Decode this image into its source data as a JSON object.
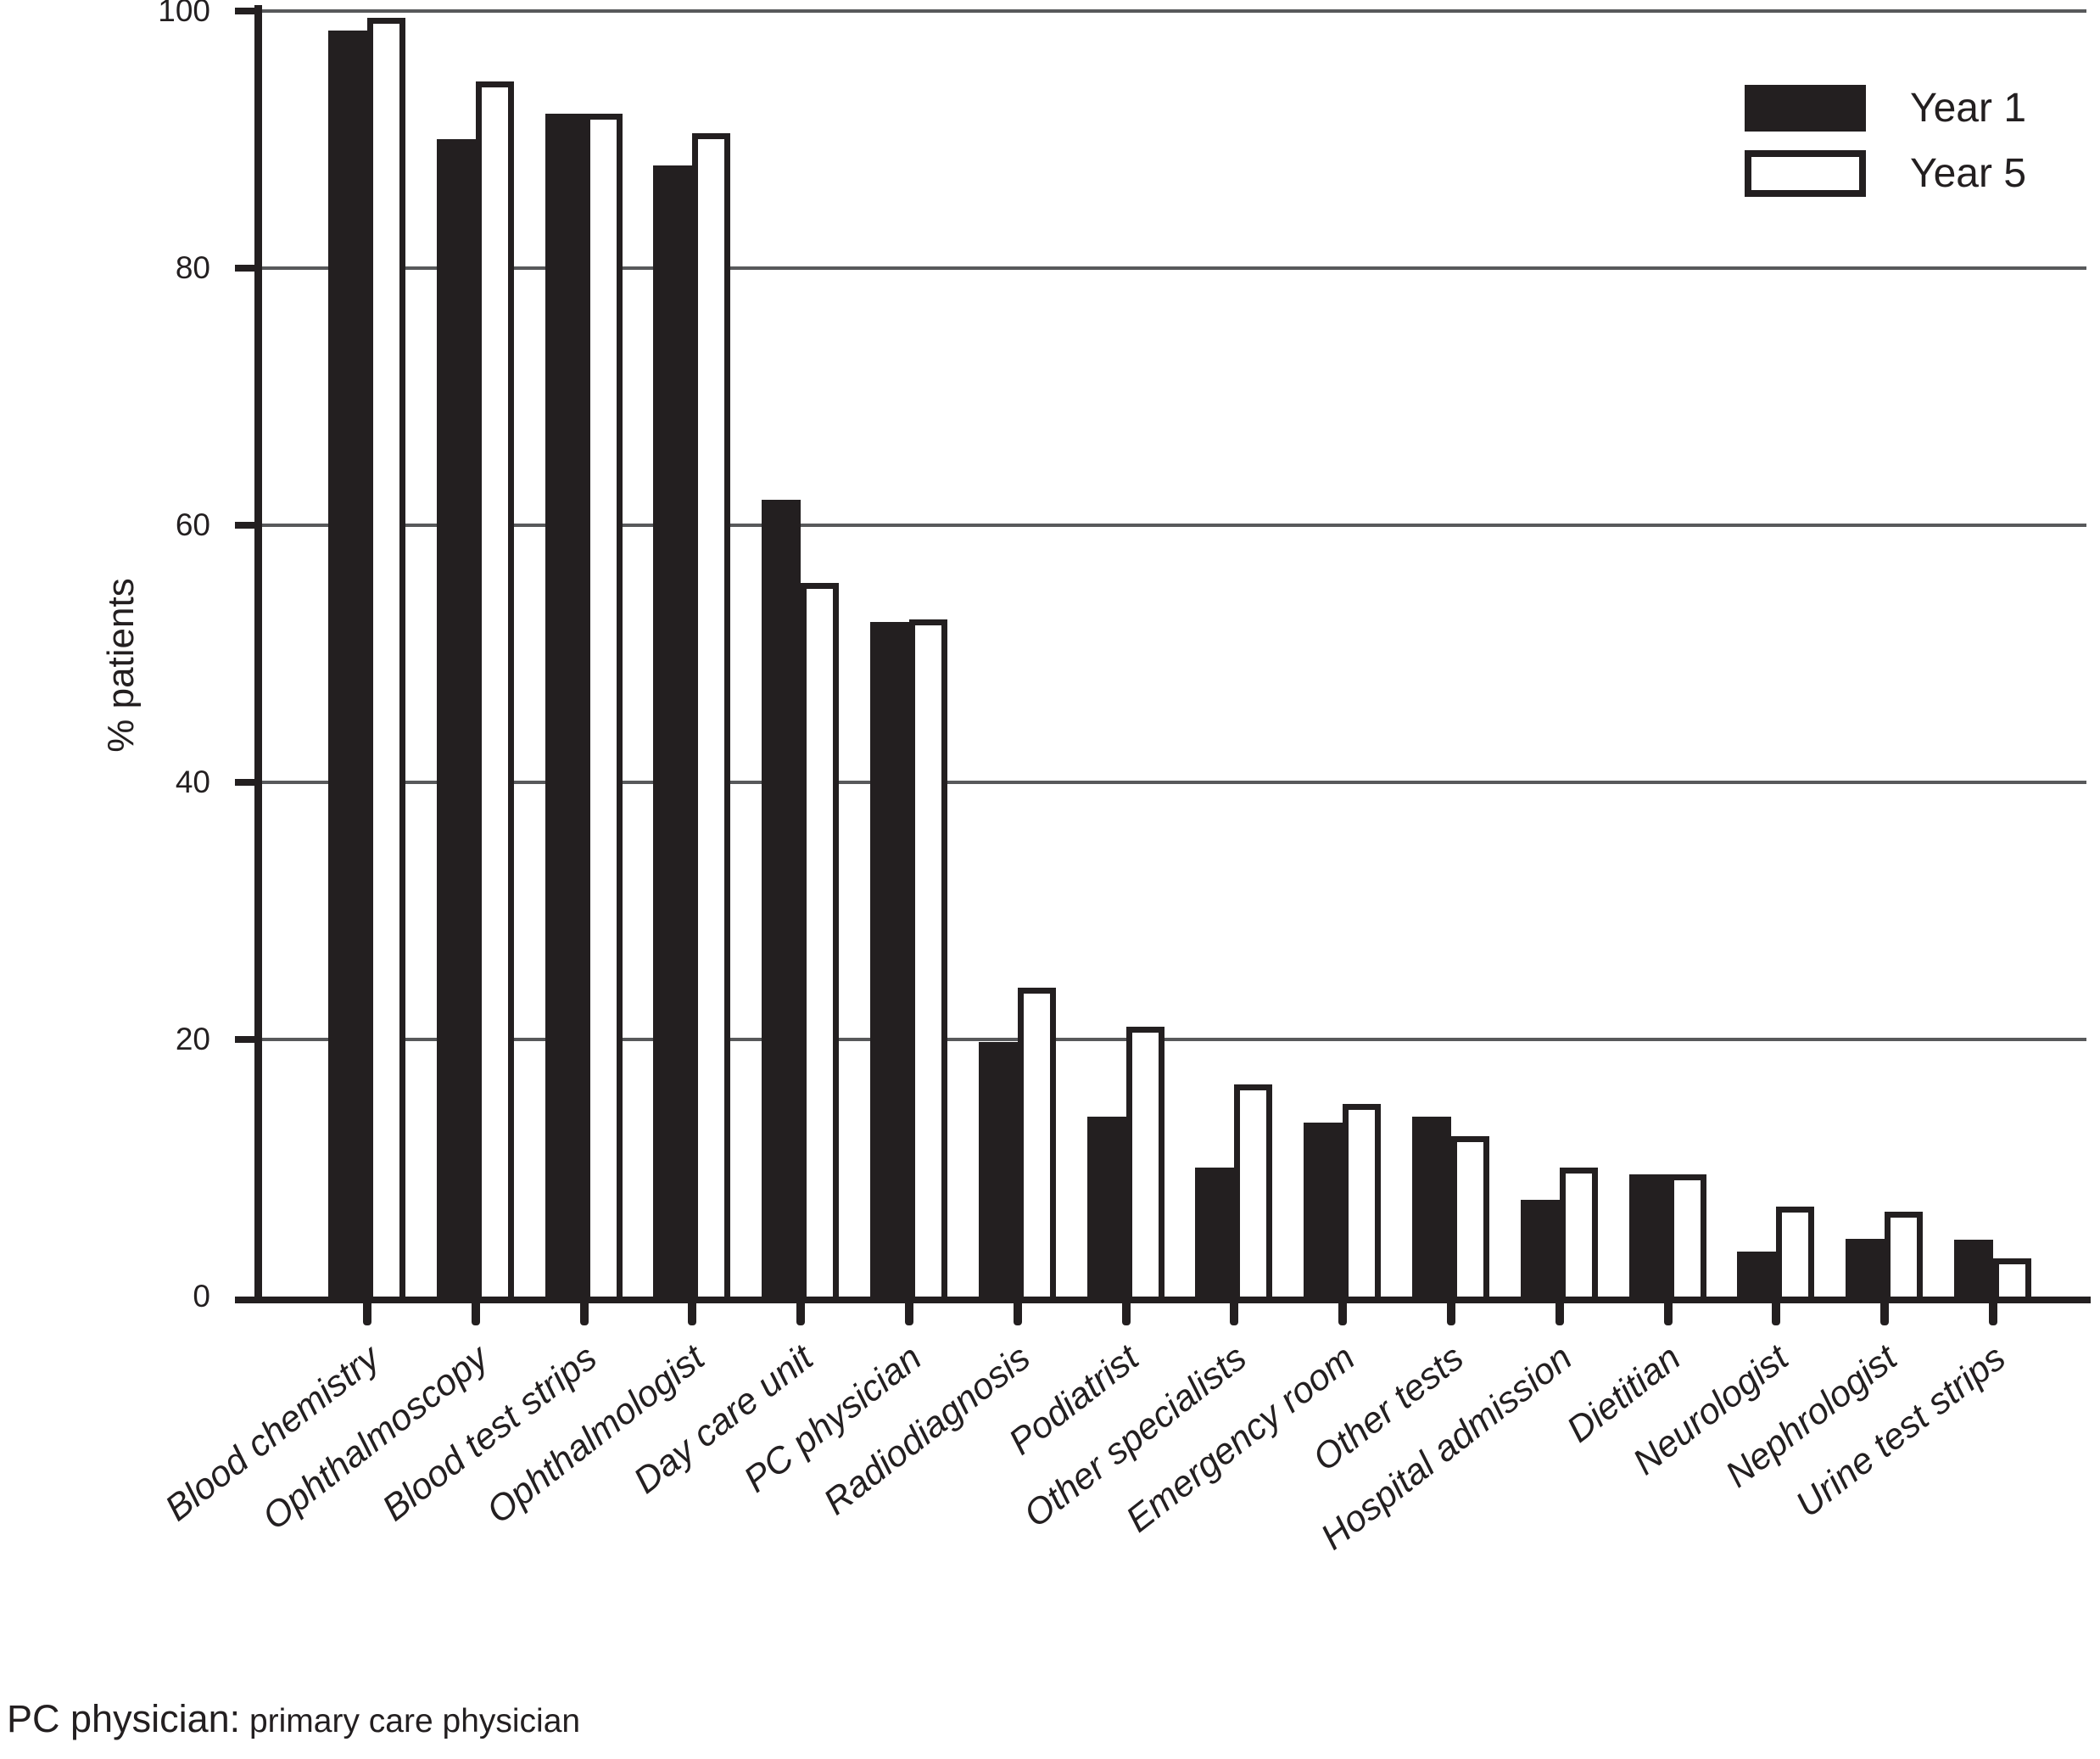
{
  "figure": {
    "ylabel": "% patients",
    "footnote_term": "PC physician:",
    "footnote_definition": " primary care physician"
  },
  "legend": [
    {
      "label": "Year 1",
      "fill": "#231f20"
    },
    {
      "label": "Year 5",
      "fill": "#ffffff"
    }
  ],
  "colors": {
    "ink": "#231f20",
    "grid": "#58595b",
    "background": "#ffffff"
  },
  "chart_data": {
    "type": "bar",
    "title": "",
    "ylabel": "% patients",
    "xlabel": "",
    "ylim": [
      0,
      100
    ],
    "yticks": [
      0,
      20,
      40,
      60,
      80,
      100
    ],
    "grid": true,
    "legend_position": "top-right",
    "categories": [
      "Blood chemistry",
      "Ophthalmoscopy",
      "Blood test strips",
      "Ophthalmologist",
      "Day care unit",
      "PC physician",
      "Radiodiagnosis",
      "Podiatrist",
      "Other specialists",
      "Emergency room",
      "Other tests",
      "Hospital admission",
      "Dietitian",
      "Neurologist",
      "Nephrologist",
      "Urine test strips"
    ],
    "series": [
      {
        "name": "Year 1",
        "style": "filled-black",
        "values": [
          98.5,
          90,
          92,
          88,
          62,
          52.5,
          19.8,
          14,
          10,
          13.5,
          14,
          7.5,
          9.5,
          3.5,
          4.5,
          4.4
        ]
      },
      {
        "name": "Year 5",
        "style": "open-white",
        "values": [
          99.5,
          94.5,
          92,
          90.5,
          55.5,
          52.7,
          24,
          21,
          16.5,
          15,
          12.5,
          10,
          9.5,
          7,
          6.6,
          3
        ]
      }
    ],
    "footnote": "PC physician: primary care physician"
  }
}
